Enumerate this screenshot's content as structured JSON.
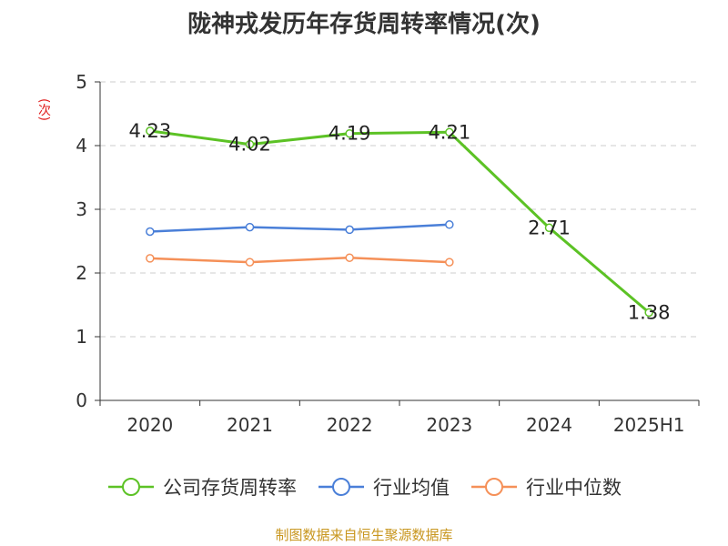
{
  "chart_data": {
    "type": "line",
    "title": "陇神戎发历年存货周转率情况(次)",
    "ylabel": "(次)",
    "categories": [
      "2020",
      "2021",
      "2022",
      "2023",
      "2024",
      "2025H1"
    ],
    "ylim": [
      0,
      5
    ],
    "yticks": [
      0,
      1,
      2,
      3,
      4,
      5
    ],
    "grid": true,
    "legend_position": "bottom",
    "series": [
      {
        "name": "公司存货周转率",
        "color": "#5cc225",
        "values": [
          4.23,
          4.02,
          4.19,
          4.21,
          2.71,
          1.38
        ],
        "labels": [
          "4.23",
          "4.02",
          "4.19",
          "4.21",
          "2.71",
          "1.38"
        ]
      },
      {
        "name": "行业均值",
        "color": "#4a7fd8",
        "values": [
          2.65,
          2.72,
          2.68,
          2.76,
          null,
          null
        ]
      },
      {
        "name": "行业中位数",
        "color": "#f59058",
        "values": [
          2.23,
          2.17,
          2.24,
          2.17,
          null,
          null
        ]
      }
    ]
  },
  "source_text": "制图数据来自恒生聚源数据库"
}
